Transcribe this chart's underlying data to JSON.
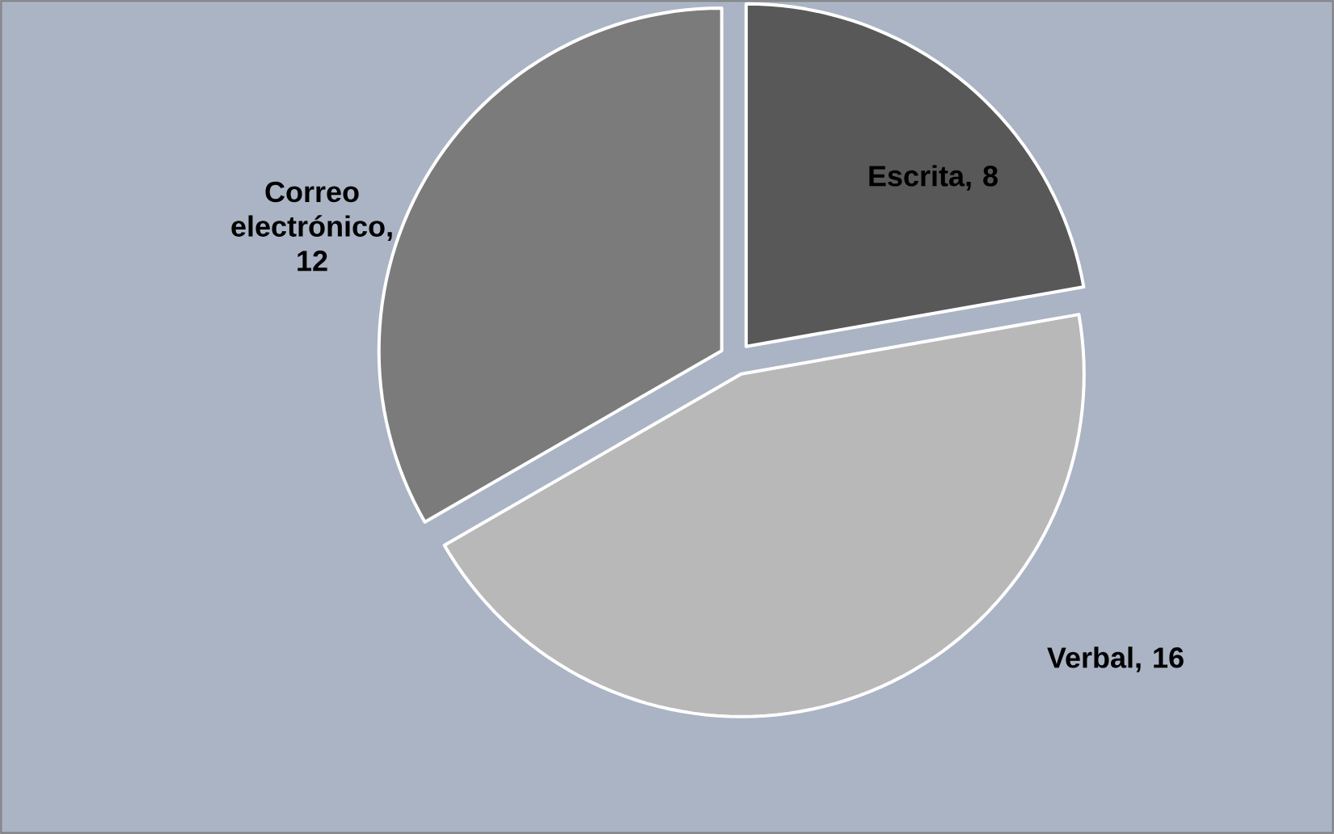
{
  "chart_data": {
    "type": "pie",
    "categories": [
      "Escrita",
      "Verbal",
      "Correo electrónico"
    ],
    "values": [
      8,
      16,
      12
    ],
    "colors": [
      "#585858",
      "#b8b8b8",
      "#7b7b7b"
    ],
    "value_labels": [
      ", 8",
      ", 16",
      ", 12"
    ]
  }
}
